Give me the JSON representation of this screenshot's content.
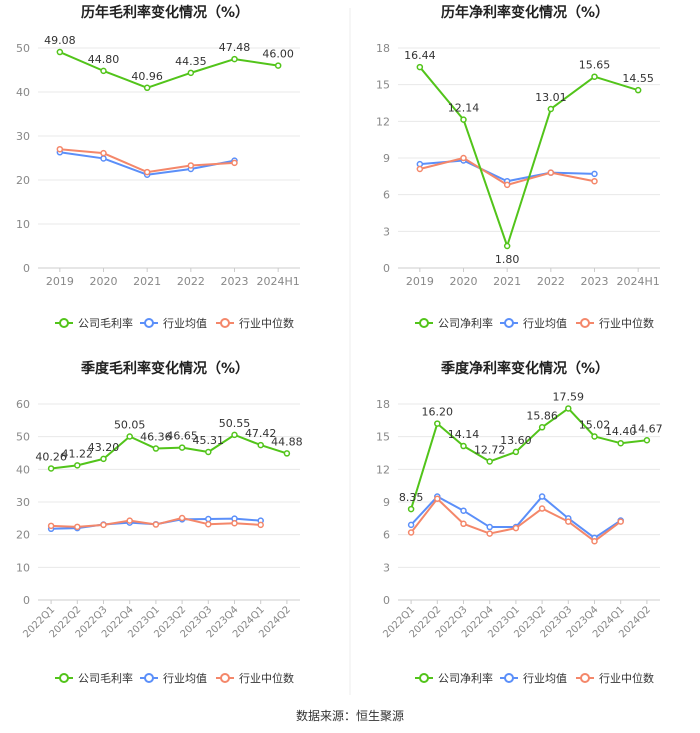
{
  "colors": {
    "company": "#52c41a",
    "industry_avg": "#5b8ff9",
    "industry_median": "#f4876a",
    "grid": "#e8e8e8",
    "axis_text": "#888888",
    "title_text": "#222222",
    "divider": "#eeeeee"
  },
  "footer": "数据来源：恒生聚源",
  "chart_data": [
    {
      "type": "line",
      "title": "历年毛利率变化情况（%）",
      "categories": [
        "2019",
        "2020",
        "2021",
        "2022",
        "2023",
        "2024H1"
      ],
      "ylim": [
        0,
        50
      ],
      "yticks": [
        0,
        10,
        20,
        30,
        40,
        50
      ],
      "x_tick_rotation": 0,
      "grid": true,
      "legend_position": "bottom",
      "series": [
        {
          "name": "公司毛利率",
          "color": "#52c41a",
          "labels": true,
          "values": [
            49.08,
            44.8,
            40.96,
            44.35,
            47.48,
            46.0
          ]
        },
        {
          "name": "行业均值",
          "color": "#5b8ff9",
          "labels": false,
          "values": [
            26.3,
            24.9,
            21.2,
            22.5,
            24.4,
            null
          ]
        },
        {
          "name": "行业中位数",
          "color": "#f4876a",
          "labels": false,
          "values": [
            27.0,
            26.1,
            21.8,
            23.3,
            23.9,
            null
          ]
        }
      ]
    },
    {
      "type": "line",
      "title": "历年净利率变化情况（%）",
      "categories": [
        "2019",
        "2020",
        "2021",
        "2022",
        "2023",
        "2024H1"
      ],
      "ylim": [
        0,
        18
      ],
      "yticks": [
        0,
        3,
        6,
        9,
        12,
        15,
        18
      ],
      "x_tick_rotation": 0,
      "grid": true,
      "legend_position": "bottom",
      "series": [
        {
          "name": "公司净利率",
          "color": "#52c41a",
          "labels": true,
          "values": [
            16.44,
            12.14,
            1.8,
            13.01,
            15.65,
            14.55
          ]
        },
        {
          "name": "行业均值",
          "color": "#5b8ff9",
          "labels": false,
          "values": [
            8.5,
            8.8,
            7.1,
            7.8,
            7.7,
            null
          ]
        },
        {
          "name": "行业中位数",
          "color": "#f4876a",
          "labels": false,
          "values": [
            8.1,
            9.0,
            6.8,
            7.8,
            7.1,
            null
          ]
        }
      ]
    },
    {
      "type": "line",
      "title": "季度毛利率变化情况（%）",
      "categories": [
        "2022Q1",
        "2022Q2",
        "2022Q3",
        "2022Q4",
        "2023Q1",
        "2023Q2",
        "2023Q3",
        "2023Q4",
        "2024Q1",
        "2024Q2"
      ],
      "ylim": [
        0,
        60
      ],
      "yticks": [
        0,
        10,
        20,
        30,
        40,
        50,
        60
      ],
      "x_tick_rotation": -45,
      "grid": true,
      "legend_position": "bottom",
      "series": [
        {
          "name": "公司毛利率",
          "color": "#52c41a",
          "labels": true,
          "values": [
            40.26,
            41.22,
            43.2,
            50.05,
            46.36,
            46.65,
            45.31,
            50.55,
            47.42,
            44.88
          ]
        },
        {
          "name": "行业均值",
          "color": "#5b8ff9",
          "labels": false,
          "values": [
            21.8,
            22.0,
            23.1,
            23.7,
            23.2,
            24.7,
            24.8,
            24.9,
            24.3,
            null
          ]
        },
        {
          "name": "行业中位数",
          "color": "#f4876a",
          "labels": false,
          "values": [
            22.7,
            22.4,
            23.0,
            24.3,
            23.1,
            25.1,
            23.2,
            23.5,
            23.0,
            null
          ]
        }
      ]
    },
    {
      "type": "line",
      "title": "季度净利率变化情况（%）",
      "categories": [
        "2022Q1",
        "2022Q2",
        "2022Q3",
        "2022Q4",
        "2023Q1",
        "2023Q2",
        "2023Q3",
        "2023Q4",
        "2024Q1",
        "2024Q2"
      ],
      "ylim": [
        0,
        18
      ],
      "yticks": [
        0,
        3,
        6,
        9,
        12,
        15,
        18
      ],
      "x_tick_rotation": -45,
      "grid": true,
      "legend_position": "bottom",
      "series": [
        {
          "name": "公司净利率",
          "color": "#52c41a",
          "labels": true,
          "values": [
            8.35,
            16.2,
            14.14,
            12.72,
            13.6,
            15.86,
            17.59,
            15.02,
            14.4,
            14.67
          ]
        },
        {
          "name": "行业均值",
          "color": "#5b8ff9",
          "labels": false,
          "values": [
            6.9,
            9.5,
            8.2,
            6.7,
            6.7,
            9.5,
            7.5,
            5.7,
            7.3,
            null
          ]
        },
        {
          "name": "行业中位数",
          "color": "#f4876a",
          "labels": false,
          "values": [
            6.2,
            9.3,
            7.0,
            6.1,
            6.6,
            8.4,
            7.2,
            5.4,
            7.2,
            null
          ]
        }
      ]
    }
  ]
}
